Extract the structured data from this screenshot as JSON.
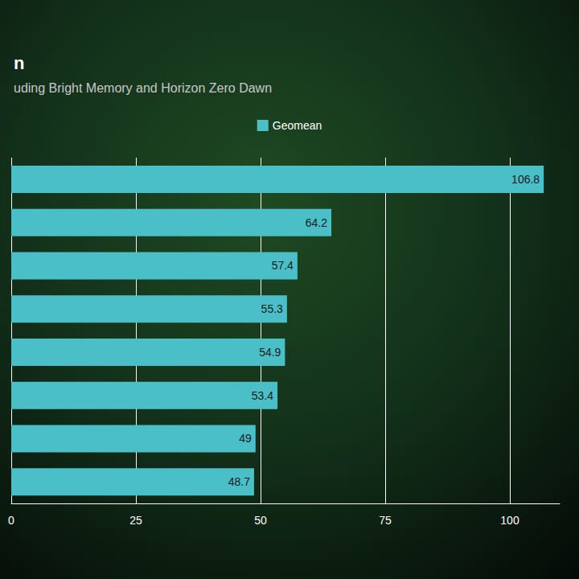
{
  "chart_data": {
    "type": "bar",
    "title": "n",
    "subtitle": "uding Bright Memory and Horizon Zero Dawn",
    "orientation": "horizontal",
    "categories": [
      null,
      null,
      null,
      null,
      null,
      null,
      null,
      null
    ],
    "series": [
      {
        "name": "Geomean",
        "color": "#4bbfc8",
        "values": [
          106.8,
          64.2,
          57.4,
          55.3,
          54.9,
          53.4,
          49,
          48.7
        ]
      }
    ],
    "xlim": [
      0,
      110
    ],
    "xticks": [
      0,
      25,
      50,
      75,
      100
    ],
    "grid": true,
    "legend": "top",
    "data_labels": true
  }
}
